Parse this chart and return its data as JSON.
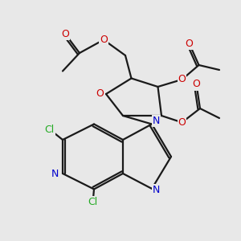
{
  "bg": "#e8e8e8",
  "bc": "#1a1a1a",
  "Nc": "#0000cc",
  "Oc": "#cc0000",
  "Clc": "#22aa22",
  "lw": 1.6,
  "fs": 8.5,
  "xlim": [
    0,
    10
  ],
  "ylim": [
    0,
    10
  ]
}
